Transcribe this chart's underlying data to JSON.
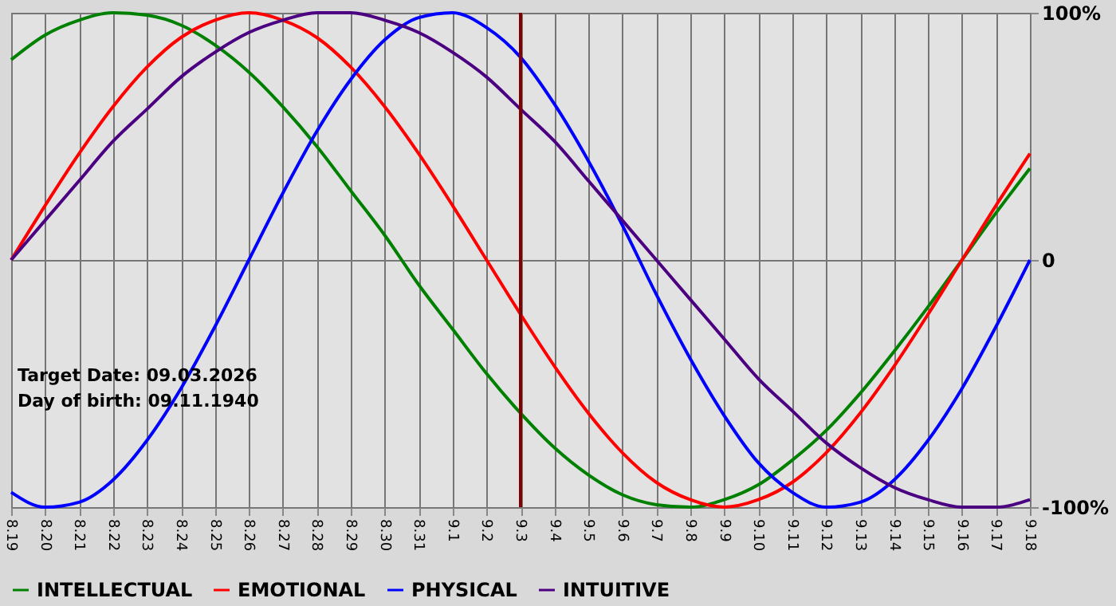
{
  "chart_data": {
    "type": "line",
    "categories": [
      "8.19",
      "8.20",
      "8.21",
      "8.22",
      "8.23",
      "8.24",
      "8.25",
      "8.26",
      "8.27",
      "8.28",
      "8.29",
      "8.30",
      "8.31",
      "9.1",
      "9.2",
      "9.3",
      "9.4",
      "9.5",
      "9.6",
      "9.7",
      "9.8",
      "9.9",
      "9.10",
      "9.11",
      "9.12",
      "9.13",
      "9.14",
      "9.15",
      "9.16",
      "9.17",
      "9.18"
    ],
    "series": [
      {
        "name": "INTELLECTUAL",
        "color": "#008000",
        "values": [
          81,
          91,
          97,
          100,
          99,
          95,
          87,
          76,
          62,
          46,
          28,
          10,
          -10,
          -28,
          -46,
          -62,
          -76,
          -87,
          -95,
          -99,
          -100,
          -97,
          -91,
          -81,
          -69,
          -54,
          -37,
          -19,
          0,
          19,
          37
        ]
      },
      {
        "name": "EMOTIONAL",
        "color": "#ff0000",
        "values": [
          0,
          22,
          43,
          62,
          78,
          90,
          97,
          100,
          97,
          90,
          78,
          62,
          43,
          22,
          0,
          -22,
          -43,
          -62,
          -78,
          -90,
          -97,
          -100,
          -97,
          -90,
          -78,
          -62,
          -43,
          -22,
          0,
          22,
          43
        ]
      },
      {
        "name": "PHYSICAL",
        "color": "#0000ff",
        "values": [
          -94,
          -100,
          -98,
          -89,
          -73,
          -52,
          -27,
          0,
          27,
          52,
          73,
          89,
          98,
          100,
          94,
          82,
          63,
          40,
          14,
          -14,
          -40,
          -63,
          -82,
          -94,
          -100,
          -98,
          -89,
          -73,
          -52,
          -27,
          0
        ]
      },
      {
        "name": "INTUITIVE",
        "color": "#4b0082",
        "values": [
          0,
          16,
          32,
          48,
          61,
          74,
          84,
          92,
          97,
          100,
          100,
          97,
          92,
          84,
          74,
          61,
          48,
          32,
          16,
          0,
          -16,
          -32,
          -48,
          -61,
          -74,
          -84,
          -92,
          -97,
          -100,
          -100,
          -97
        ]
      }
    ],
    "ylim": [
      -100,
      100
    ],
    "yticks": [
      {
        "value": 100,
        "label": "100%"
      },
      0,
      {
        "value": -100,
        "label": "-100%"
      }
    ],
    "ref_lines": [
      {
        "axis": "x",
        "value": "9.3",
        "color": "#800000"
      }
    ],
    "annotations": [
      "Target Date: 09.03.2026",
      "Day of birth: 09.11.1940"
    ],
    "grid": true,
    "legend": "bottom",
    "marker": "none",
    "line_style": "solid"
  }
}
